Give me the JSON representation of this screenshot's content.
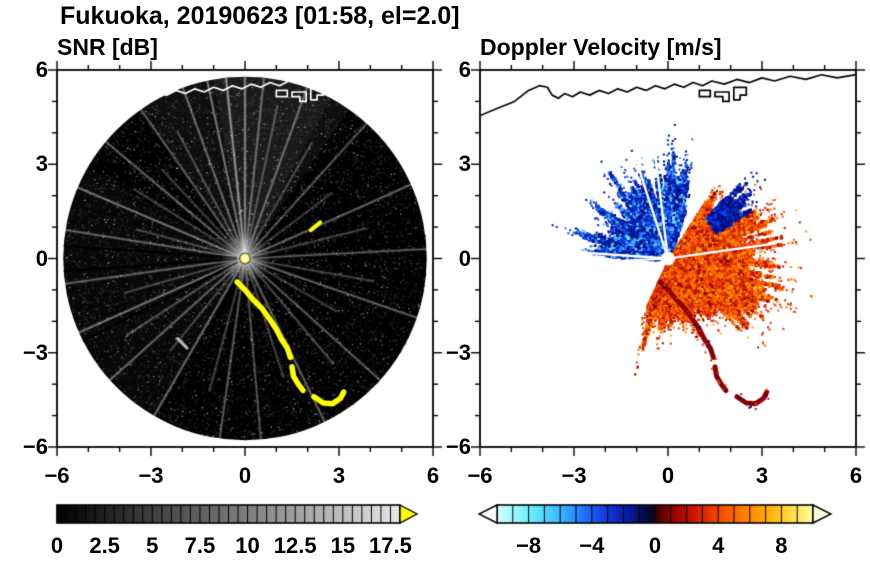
{
  "title": "Fukuoka, 20190623 [01:58, el=2.0]",
  "chart_data": [
    {
      "type": "heatmap",
      "title": "SNR [dB]",
      "xlim": [
        -6,
        6
      ],
      "ylim": [
        -6,
        6
      ],
      "xticks": [
        -6,
        -3,
        0,
        3,
        6
      ],
      "yticks": [
        -6,
        -3,
        0,
        3,
        6
      ],
      "minor_tick_step": 1,
      "scan_radius_km": 5.8,
      "disk_color": "#000000",
      "haze_wedges": [
        [
          55,
          125,
          0.055
        ],
        [
          62,
          100,
          0.05
        ],
        [
          150,
          240,
          0.03
        ]
      ],
      "clutter_rays": [
        [
          3,
          5.8,
          0.28
        ],
        [
          14,
          4.0,
          0.2
        ],
        [
          24,
          5.8,
          0.3
        ],
        [
          37,
          3.5,
          0.18
        ],
        [
          48,
          5.8,
          0.26
        ],
        [
          60,
          4.3,
          0.2
        ],
        [
          70,
          5.8,
          0.3
        ],
        [
          78,
          5.0,
          0.22
        ],
        [
          84,
          5.8,
          0.3
        ],
        [
          90,
          5.8,
          0.38
        ],
        [
          96,
          5.8,
          0.45
        ],
        [
          102,
          5.8,
          0.35
        ],
        [
          110,
          5.8,
          0.3
        ],
        [
          118,
          4.6,
          0.22
        ],
        [
          125,
          5.8,
          0.28
        ],
        [
          133,
          3.9,
          0.18
        ],
        [
          140,
          5.8,
          0.3
        ],
        [
          148,
          4.2,
          0.2
        ],
        [
          157,
          5.8,
          0.35
        ],
        [
          165,
          3.6,
          0.2
        ],
        [
          171,
          5.8,
          0.3
        ],
        [
          188,
          5.8,
          0.28
        ],
        [
          196,
          4.0,
          0.2
        ],
        [
          204,
          5.8,
          0.35
        ],
        [
          213,
          4.5,
          0.22
        ],
        [
          222,
          5.8,
          0.3
        ],
        [
          231,
          3.8,
          0.2
        ],
        [
          240,
          5.8,
          0.32
        ],
        [
          255,
          4.4,
          0.2
        ],
        [
          262,
          5.8,
          0.28
        ],
        [
          275,
          5.8,
          0.25
        ],
        [
          288,
          4.0,
          0.2
        ],
        [
          296,
          5.8,
          0.3
        ],
        [
          310,
          4.4,
          0.22
        ],
        [
          318,
          5.8,
          0.28
        ],
        [
          330,
          3.4,
          0.18
        ],
        [
          341,
          5.8,
          0.3
        ],
        [
          350,
          4.2,
          0.2
        ]
      ],
      "shadow_rays_deg": [
        7,
        176,
        184,
        207
      ],
      "sea_clutter_color": "#ffff00",
      "yellow_dashes": [
        [
          [
            2.1,
            0.9
          ],
          [
            2.4,
            1.15
          ]
        ]
      ],
      "gray_dashes": [
        [
          [
            -2.15,
            -2.55
          ],
          [
            -1.85,
            -2.85
          ]
        ]
      ],
      "center_dot": {
        "x": 0,
        "y": 0,
        "color": "#ffff66"
      },
      "colorbar": {
        "min": 0,
        "max": 18,
        "tick_step": 0.5,
        "labels": [
          0,
          2.5,
          5,
          7.5,
          10,
          12.5,
          15,
          17.5
        ],
        "gradient": [
          [
            0,
            "#000000"
          ],
          [
            18,
            "#e6e6e6"
          ]
        ],
        "overflow_color": "#ffff00"
      }
    },
    {
      "type": "heatmap",
      "title": "Doppler Velocity [m/s]",
      "xlim": [
        -6,
        6
      ],
      "ylim": [
        -6,
        6
      ],
      "xticks": [
        -6,
        -3,
        0,
        3,
        6
      ],
      "yticks": [
        -6,
        -3,
        0,
        3,
        6
      ],
      "minor_tick_step": 1,
      "center_hole_radius": 0.22,
      "blobs": [
        {
          "name": "negative-velocity-sector",
          "az_range": [
            72,
            178
          ],
          "spikes": [
            [
              72,
              1.6
            ],
            [
              78,
              2.9
            ],
            [
              84,
              2.2
            ],
            [
              88,
              3.0
            ],
            [
              93,
              2.0
            ],
            [
              97,
              2.6
            ],
            [
              102,
              1.8
            ],
            [
              106,
              3.1
            ],
            [
              111,
              2.1
            ],
            [
              115,
              2.4
            ],
            [
              120,
              1.7
            ],
            [
              124,
              2.9
            ],
            [
              129,
              1.9
            ],
            [
              134,
              2.2
            ],
            [
              139,
              1.6
            ],
            [
              143,
              2.6
            ],
            [
              148,
              1.7
            ],
            [
              152,
              2.0
            ],
            [
              158,
              1.5
            ],
            [
              163,
              2.8
            ],
            [
              168,
              1.8
            ],
            [
              172,
              2.3
            ],
            [
              178,
              1.9
            ]
          ],
          "n": 11000,
          "palette": [
            [
              "#000c78",
              0.25
            ],
            [
              "#0020b4",
              0.25
            ],
            [
              "#0c46f0",
              0.2
            ],
            [
              "#2878ff",
              0.15
            ],
            [
              "#50b4ff",
              0.1
            ],
            [
              "#80e0ff",
              0.05
            ]
          ]
        },
        {
          "name": "positive-velocity-sector",
          "az_range": [
            -115,
            58
          ],
          "spikes": [
            [
              -115,
              1.4
            ],
            [
              -108,
              2.5
            ],
            [
              -100,
              1.8
            ],
            [
              -95,
              2.3
            ],
            [
              -88,
              1.6
            ],
            [
              -80,
              2.0
            ],
            [
              -74,
              1.5
            ],
            [
              -68,
              2.2
            ],
            [
              -60,
              1.8
            ],
            [
              -55,
              2.6
            ],
            [
              -48,
              2.0
            ],
            [
              -42,
              3.3
            ],
            [
              -36,
              2.4
            ],
            [
              -30,
              3.1
            ],
            [
              -24,
              2.7
            ],
            [
              -18,
              3.4
            ],
            [
              -11,
              2.8
            ],
            [
              -5,
              2.9
            ],
            [
              2,
              2.4
            ],
            [
              10,
              3.3
            ],
            [
              17,
              2.6
            ],
            [
              25,
              3.2
            ],
            [
              32,
              2.3
            ],
            [
              40,
              2.6
            ],
            [
              48,
              1.9
            ],
            [
              55,
              2.2
            ]
          ],
          "n": 16000,
          "palette": [
            [
              "#b41400",
              0.18
            ],
            [
              "#e63200",
              0.27
            ],
            [
              "#ff6400",
              0.3
            ],
            [
              "#ff8c00",
              0.13
            ],
            [
              "#960000",
              0.08
            ],
            [
              "#ffb400",
              0.04
            ]
          ]
        },
        {
          "name": "upper-right-negative-patch",
          "az_range": [
            30,
            48
          ],
          "spikes": [
            [
              30,
              2.9
            ],
            [
              38,
              2.8
            ],
            [
              48,
              2.9
            ]
          ],
          "r_min": 1.7,
          "n": 900,
          "palette": [
            [
              "#001080",
              0.5
            ],
            [
              "#0020b4",
              0.3
            ],
            [
              "#0c46f0",
              0.2
            ]
          ]
        }
      ],
      "white_rays_deg": [
        8,
        97,
        108,
        176,
        183,
        207
      ],
      "echo_arc_color": "#8b0000",
      "echo_arc_speckles": [
        "#b22222",
        "#ff4500",
        "#00008b"
      ],
      "colorbar": {
        "min": -10,
        "max": 10,
        "tick_step": 1,
        "labels": [
          -8,
          -4,
          0,
          4,
          8
        ],
        "gradient": [
          [
            -10,
            "#d8ffff"
          ],
          [
            -8,
            "#70f0ff"
          ],
          [
            -6,
            "#38b8ff"
          ],
          [
            -4.5,
            "#2272ff"
          ],
          [
            -3,
            "#1038d8"
          ],
          [
            -1.5,
            "#081890"
          ],
          [
            -0.4,
            "#000838"
          ],
          [
            -0.05,
            "#14001c"
          ],
          [
            0.05,
            "#3c0000"
          ],
          [
            1,
            "#8c0000"
          ],
          [
            2.5,
            "#cc1800"
          ],
          [
            4,
            "#f04800"
          ],
          [
            5.5,
            "#ff7800"
          ],
          [
            7,
            "#ffa800"
          ],
          [
            8.5,
            "#ffd840"
          ],
          [
            10,
            "#ffffa0"
          ]
        ],
        "underflow_color": "#ffffff",
        "overflow_color": "#ffffd8"
      }
    }
  ],
  "echo_arc": {
    "segments": [
      [
        [
          -0.25,
          -0.75
        ],
        [
          0.0,
          -1.0
        ],
        [
          0.3,
          -1.35
        ],
        [
          0.55,
          -1.6
        ],
        [
          0.8,
          -1.95
        ],
        [
          1.0,
          -2.25
        ],
        [
          1.15,
          -2.55
        ],
        [
          1.35,
          -2.85
        ],
        [
          1.45,
          -3.15
        ]
      ],
      [
        [
          1.5,
          -3.45
        ],
        [
          1.55,
          -3.75
        ],
        [
          1.7,
          -4.0
        ],
        [
          1.85,
          -4.2
        ]
      ],
      [
        [
          2.2,
          -4.4
        ],
        [
          2.5,
          -4.6
        ],
        [
          2.8,
          -4.62
        ],
        [
          3.05,
          -4.45
        ],
        [
          3.15,
          -4.25
        ]
      ]
    ]
  },
  "coastline": {
    "color_left": "#ffffff",
    "color_right": "#000000",
    "main": [
      [
        -6,
        4.55
      ],
      [
        -5.4,
        4.8
      ],
      [
        -4.9,
        5.0
      ],
      [
        -4.45,
        5.35
      ],
      [
        -4.1,
        5.5
      ],
      [
        -3.85,
        5.45
      ],
      [
        -3.7,
        5.2
      ],
      [
        -3.5,
        5.1
      ],
      [
        -3.3,
        5.25
      ],
      [
        -3.05,
        5.15
      ],
      [
        -2.8,
        5.3
      ],
      [
        -2.5,
        5.2
      ],
      [
        -2.2,
        5.35
      ],
      [
        -1.9,
        5.25
      ],
      [
        -1.6,
        5.4
      ],
      [
        -1.3,
        5.3
      ],
      [
        -1.0,
        5.45
      ],
      [
        -0.7,
        5.35
      ],
      [
        -0.4,
        5.5
      ],
      [
        -0.1,
        5.4
      ],
      [
        0.2,
        5.55
      ],
      [
        0.5,
        5.45
      ],
      [
        0.8,
        5.6
      ],
      [
        1.1,
        5.5
      ],
      [
        1.4,
        5.65
      ],
      [
        1.8,
        5.55
      ],
      [
        2.2,
        5.7
      ],
      [
        2.6,
        5.6
      ],
      [
        3.0,
        5.75
      ],
      [
        3.4,
        5.65
      ],
      [
        3.9,
        5.8
      ],
      [
        4.4,
        5.7
      ],
      [
        4.9,
        5.85
      ],
      [
        5.4,
        5.75
      ],
      [
        6.0,
        5.85
      ]
    ],
    "structures": [
      [
        [
          1.0,
          5.35
        ],
        [
          1.35,
          5.35
        ],
        [
          1.35,
          5.15
        ],
        [
          1.0,
          5.15
        ],
        [
          1.0,
          5.35
        ]
      ],
      [
        [
          1.5,
          5.3
        ],
        [
          1.95,
          5.3
        ],
        [
          1.95,
          5.0
        ],
        [
          1.75,
          5.0
        ],
        [
          1.75,
          5.15
        ],
        [
          1.5,
          5.15
        ],
        [
          1.5,
          5.3
        ]
      ],
      [
        [
          2.1,
          5.45
        ],
        [
          2.5,
          5.45
        ],
        [
          2.5,
          5.2
        ],
        [
          2.3,
          5.2
        ],
        [
          2.3,
          5.05
        ],
        [
          2.1,
          5.05
        ],
        [
          2.1,
          5.45
        ]
      ]
    ]
  }
}
